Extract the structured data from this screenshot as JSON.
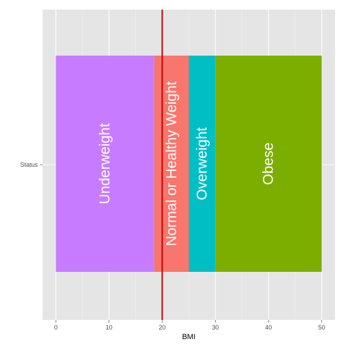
{
  "chart_data": {
    "type": "bar",
    "orientation": "horizontal-stacked",
    "xlabel": "BMI",
    "ylabel": "",
    "y_categories": [
      "Status"
    ],
    "xlim": [
      -2.5,
      52.5
    ],
    "x_ticks": [
      0,
      10,
      20,
      30,
      40,
      50
    ],
    "grid": true,
    "series": [
      {
        "name": "Underweight",
        "start": 0,
        "end": 18.5,
        "color": "#C77CFF"
      },
      {
        "name": "Normal or Healthy Weight",
        "start": 18.5,
        "end": 25,
        "color": "#F8766D"
      },
      {
        "name": "Overweight",
        "start": 25,
        "end": 30,
        "color": "#00BFC4"
      },
      {
        "name": "Obese",
        "start": 30,
        "end": 50,
        "color": "#7CAE00"
      }
    ],
    "reference_line": {
      "x": 20,
      "color": "#CC0000"
    },
    "panel_background": "#E5E5E5",
    "grid_color": "#FFFFFF"
  }
}
